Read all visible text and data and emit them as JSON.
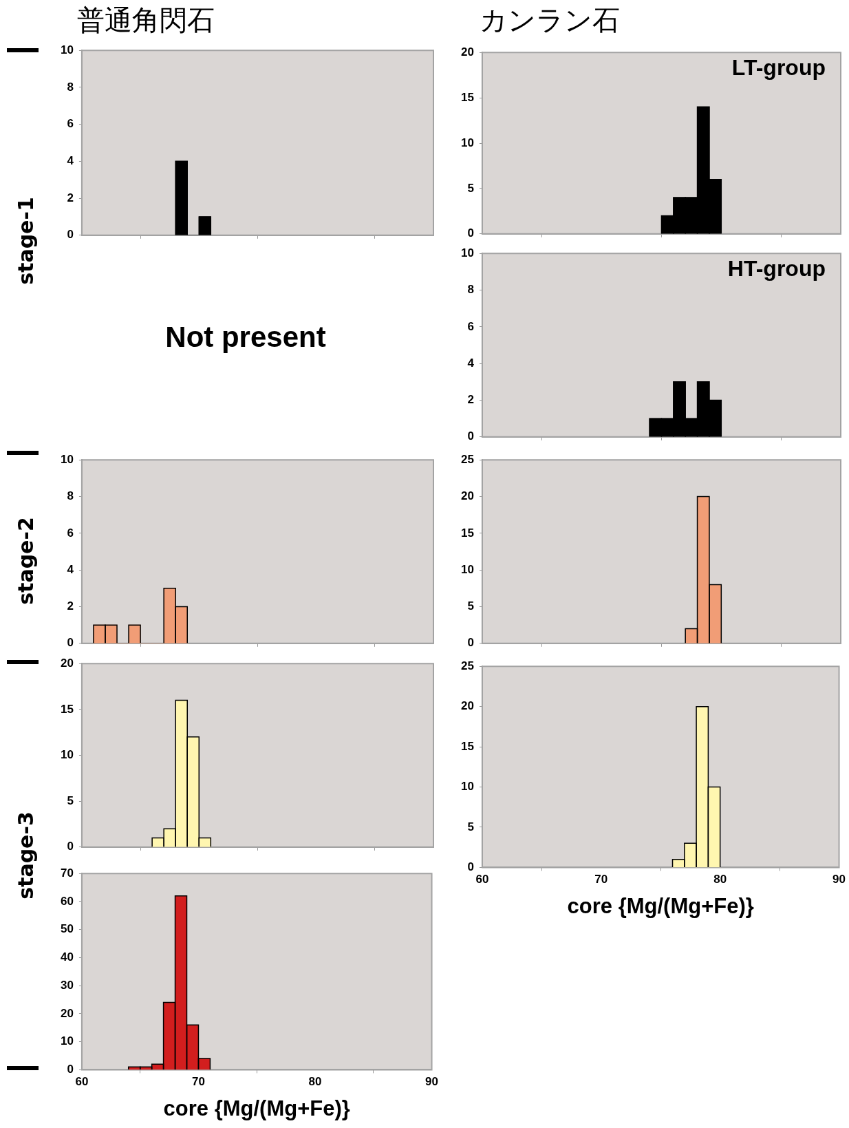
{
  "chart_data": [
    {
      "type": "histogram",
      "title": "普通角閃石",
      "ylabel": "stage-1",
      "bins": [
        68,
        69,
        70,
        71
      ],
      "values": [
        4,
        0,
        1
      ],
      "color": "#000000",
      "xlim": [
        60,
        90
      ],
      "xticks": [
        60,
        70,
        80,
        90
      ],
      "ylim": [
        0,
        10
      ],
      "yticks": [
        0,
        2,
        4,
        6,
        8,
        10
      ],
      "tick_labels": "y"
    },
    {
      "type": "histogram",
      "title": "カンラン石",
      "bins": [
        75,
        76,
        77,
        78,
        79,
        80
      ],
      "values": [
        2,
        4,
        4,
        14,
        6
      ],
      "color": "#000000",
      "xlim": [
        60,
        90
      ],
      "xticks": [
        60,
        70,
        80,
        90
      ],
      "ylim": [
        0,
        20
      ],
      "yticks": [
        0,
        5,
        10,
        15,
        20
      ],
      "tick_labels": "y",
      "annotations": [
        "LT-group"
      ]
    },
    {
      "type": "other",
      "annotations": [
        "Not  present"
      ]
    },
    {
      "type": "histogram",
      "bins": [
        74,
        75,
        76,
        77,
        78,
        79,
        80
      ],
      "values": [
        1,
        1,
        3,
        1,
        3,
        2
      ],
      "color": "#000000",
      "xlim": [
        60,
        90
      ],
      "xticks": [
        60,
        70,
        80,
        90
      ],
      "ylim": [
        0,
        10
      ],
      "yticks": [
        0,
        2,
        4,
        6,
        8,
        10
      ],
      "tick_labels": "y",
      "annotations": [
        "HT-group"
      ]
    },
    {
      "type": "histogram",
      "ylabel": "stage-2",
      "bins": [
        61,
        62,
        63,
        64,
        65,
        66,
        67,
        68,
        69
      ],
      "values": [
        1,
        1,
        0,
        1,
        0,
        0,
        3,
        2
      ],
      "color": "#f19d76",
      "xlim": [
        60,
        90
      ],
      "xticks": [
        60,
        70,
        80,
        90
      ],
      "ylim": [
        0,
        10
      ],
      "yticks": [
        0,
        2,
        4,
        6,
        8,
        10
      ],
      "tick_labels": "y"
    },
    {
      "type": "histogram",
      "bins": [
        77,
        78,
        79,
        80
      ],
      "values": [
        2,
        20,
        8
      ],
      "color": "#f19d76",
      "xlim": [
        60,
        90
      ],
      "xticks": [
        60,
        70,
        80,
        90
      ],
      "ylim": [
        0,
        25
      ],
      "yticks": [
        0,
        5,
        10,
        15,
        20,
        25
      ],
      "tick_labels": "y"
    },
    {
      "type": "histogram",
      "ylabel": "stage-3",
      "bins": [
        66,
        67,
        68,
        69,
        70,
        71
      ],
      "values": [
        1,
        2,
        16,
        12,
        1
      ],
      "color": "#fff6b0",
      "xlim": [
        60,
        90
      ],
      "xticks": [
        60,
        70,
        80,
        90
      ],
      "ylim": [
        0,
        20
      ],
      "yticks": [
        0,
        5,
        10,
        15,
        20
      ],
      "tick_labels": "y"
    },
    {
      "type": "histogram",
      "xlabel": "core {Mg/(Mg+Fe)}",
      "bins": [
        76,
        77,
        78,
        79,
        80
      ],
      "values": [
        1,
        3,
        20,
        10
      ],
      "color": "#fff6b0",
      "xlim": [
        60,
        90
      ],
      "xticks": [
        60,
        70,
        80,
        90
      ],
      "ylim": [
        0,
        25
      ],
      "yticks": [
        0,
        5,
        10,
        15,
        20,
        25
      ]
    },
    {
      "type": "histogram",
      "xlabel": "core {Mg/(Mg+Fe)}",
      "bins": [
        64,
        65,
        66,
        67,
        68,
        69,
        70,
        71
      ],
      "values": [
        1,
        1,
        2,
        24,
        62,
        16,
        4
      ],
      "color": "#d21e1e",
      "xlim": [
        60,
        90
      ],
      "xticks": [
        60,
        70,
        80,
        90
      ],
      "ylim": [
        0,
        70
      ],
      "yticks": [
        0,
        10,
        20,
        30,
        40,
        50,
        60,
        70
      ]
    }
  ]
}
